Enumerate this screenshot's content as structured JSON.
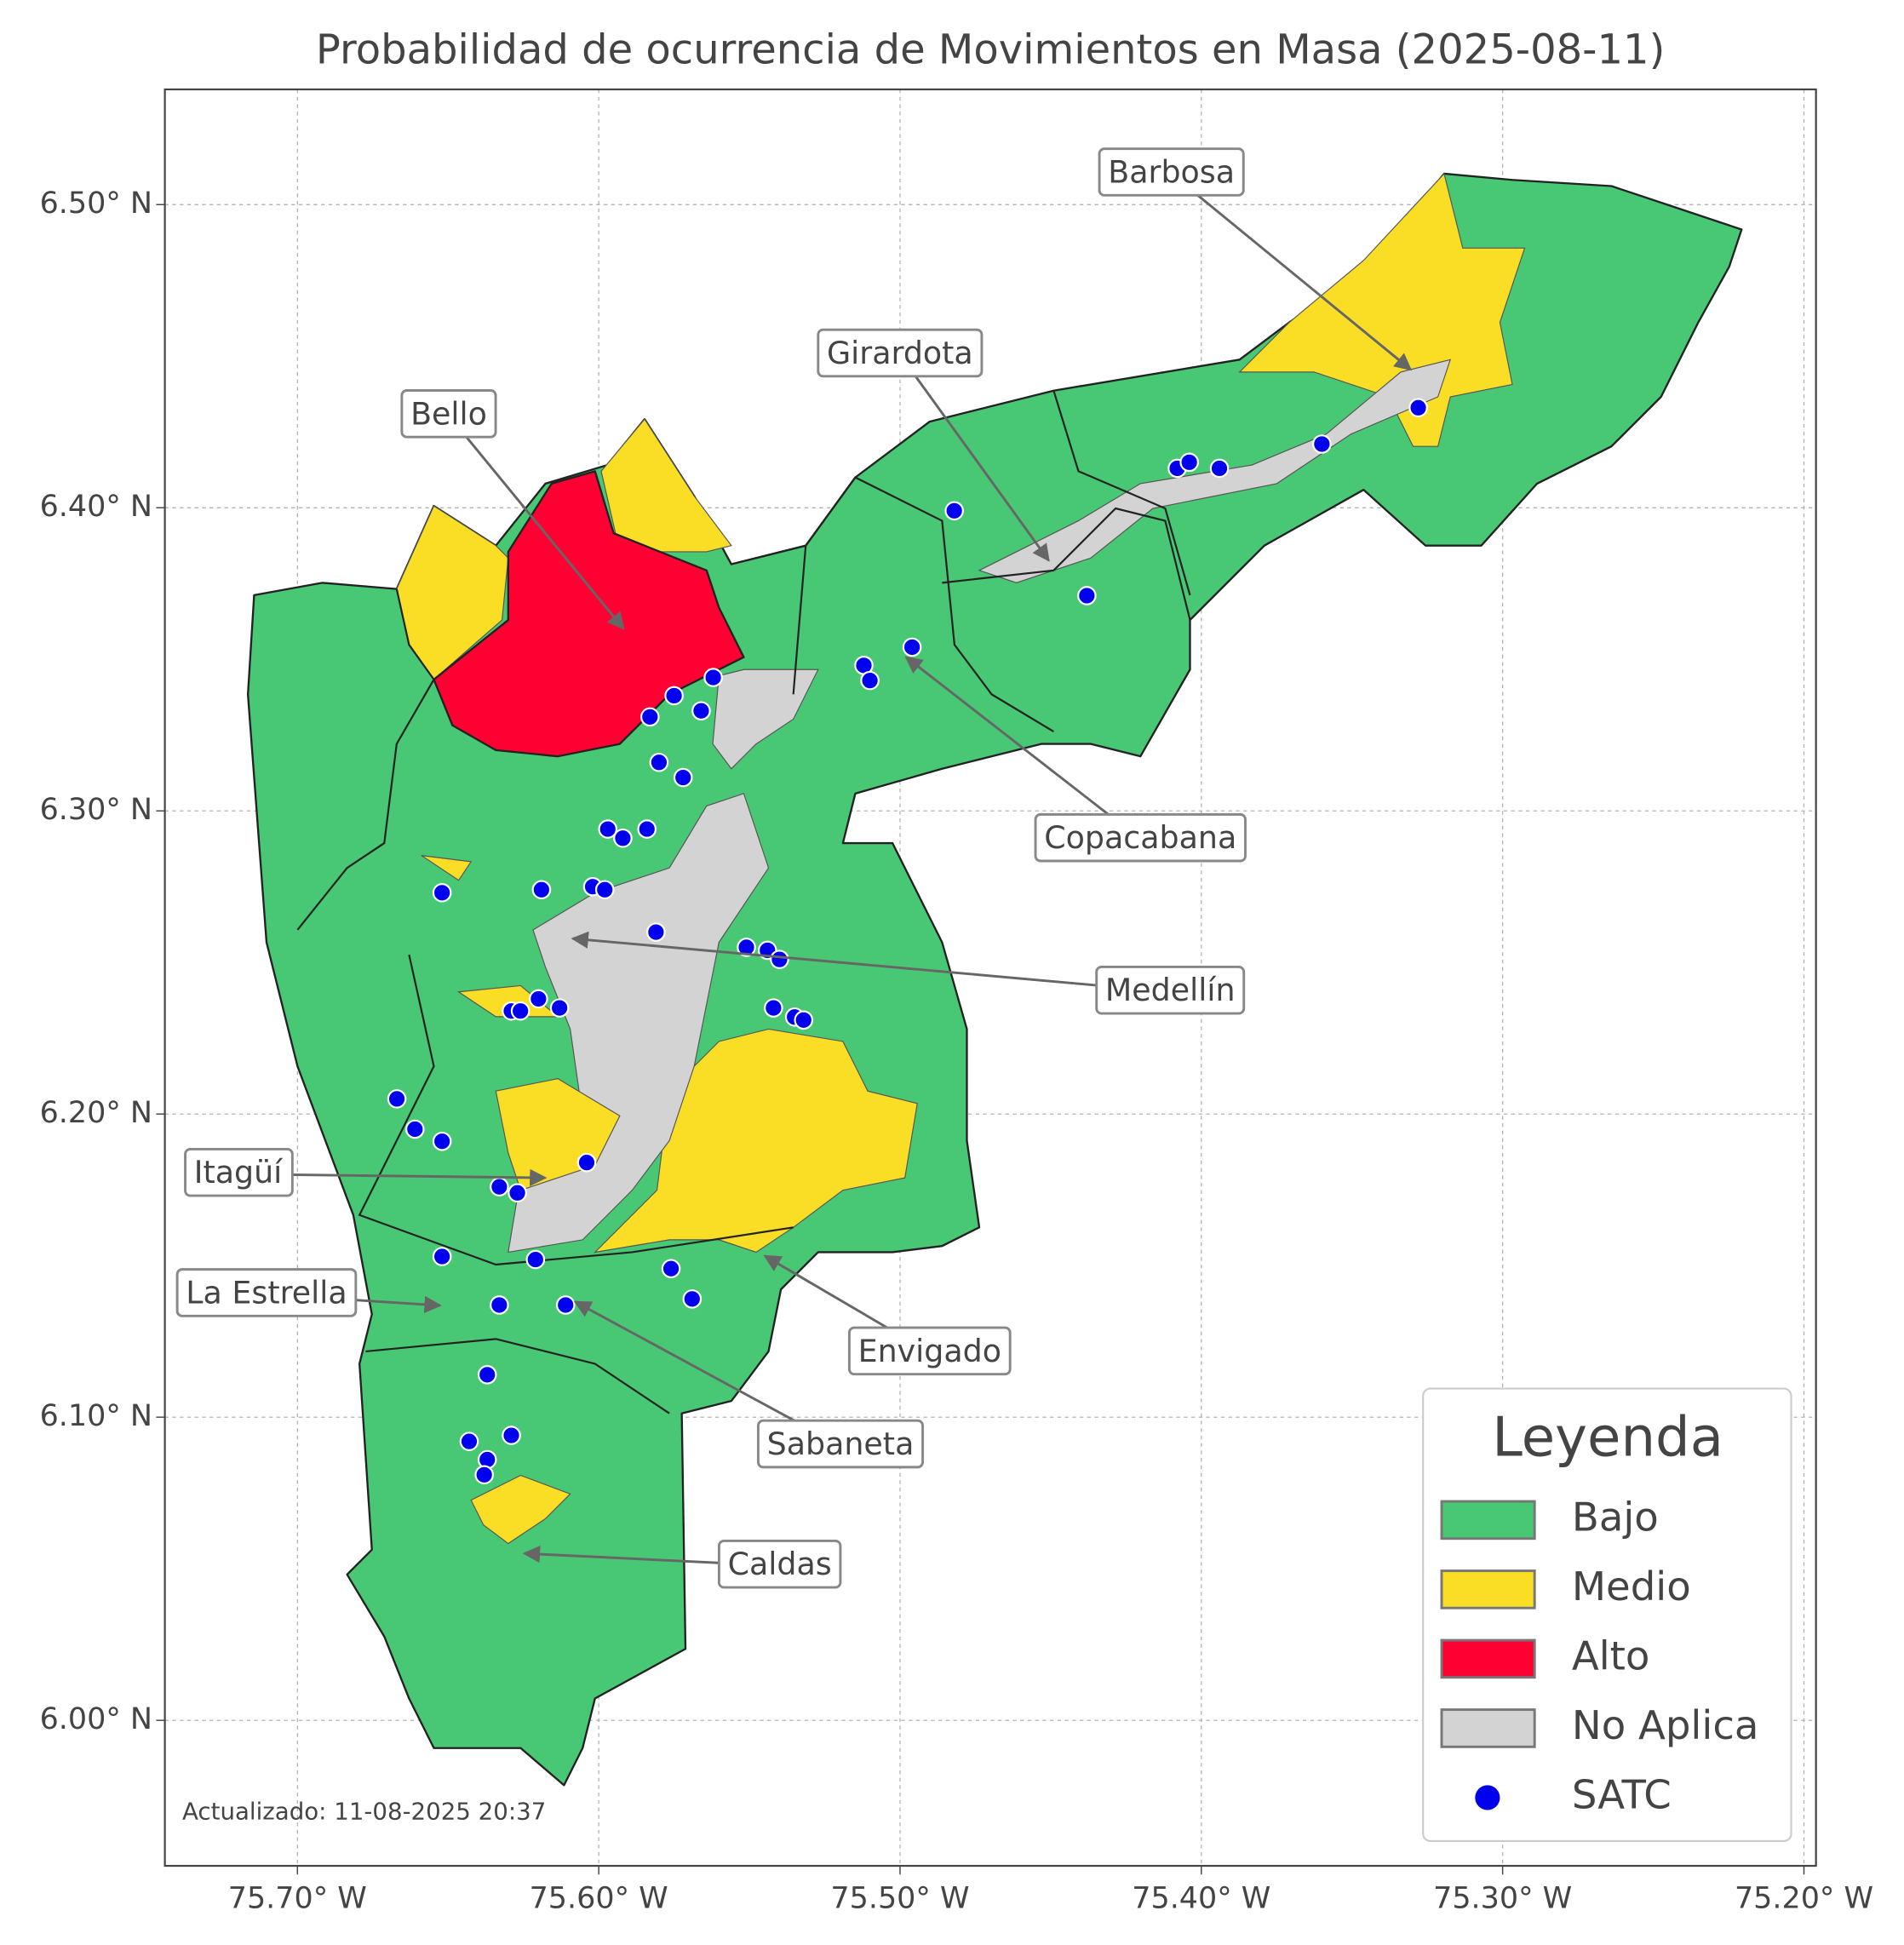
{
  "chart_data": {
    "type": "map",
    "title": "Probabilidad de ocurrencia de Movimientos en Masa (2025-08-11)",
    "xlim": [
      -75.744,
      -75.196
    ],
    "ylim": [
      5.952,
      6.538
    ],
    "xticks": [
      {
        "value": -75.7,
        "label": "75.70° W"
      },
      {
        "value": -75.6,
        "label": "75.60° W"
      },
      {
        "value": -75.5,
        "label": "75.50° W"
      },
      {
        "value": -75.4,
        "label": "75.40° W"
      },
      {
        "value": -75.3,
        "label": "75.30° W"
      },
      {
        "value": -75.2,
        "label": "75.20° W"
      }
    ],
    "yticks": [
      {
        "value": 6.0,
        "label": "6.00° N"
      },
      {
        "value": 6.1,
        "label": "6.10° N"
      },
      {
        "value": 6.2,
        "label": "6.20° N"
      },
      {
        "value": 6.3,
        "label": "6.30° N"
      },
      {
        "value": 6.4,
        "label": "6.40° N"
      },
      {
        "value": 6.5,
        "label": "6.50° N"
      }
    ],
    "grid": true,
    "legend": {
      "title": "Leyenda",
      "position": "lower right"
    },
    "regions": [
      {
        "name": "Bajo",
        "color": "#48c774"
      },
      {
        "name": "Medio",
        "color": "#fade26"
      },
      {
        "name": "Alto",
        "color": "#ff0033"
      },
      {
        "name": "No Aplica",
        "color": "#d3d3d3"
      }
    ],
    "series": [
      {
        "name": "SATC",
        "color": "#0000ee",
        "x": [
          -75.328,
          -75.36,
          -75.408,
          -75.404,
          -75.394,
          -75.482,
          -75.438,
          -75.496,
          -75.512,
          -75.51,
          -75.562,
          -75.575,
          -75.566,
          -75.583,
          -75.58,
          -75.572,
          -75.597,
          -75.592,
          -75.584,
          -75.652,
          -75.619,
          -75.602,
          -75.598,
          -75.581,
          -75.551,
          -75.544,
          -75.54,
          -75.542,
          -75.535,
          -75.532,
          -75.62,
          -75.629,
          -75.626,
          -75.613,
          -75.667,
          -75.661,
          -75.652,
          -75.604,
          -75.633,
          -75.627,
          -75.652,
          -75.621,
          -75.576,
          -75.569,
          -75.633,
          -75.611,
          -75.637,
          -75.643,
          -75.629,
          -75.637,
          -75.638
        ],
        "y": [
          6.433,
          6.421,
          6.413,
          6.415,
          6.413,
          6.399,
          6.371,
          6.354,
          6.348,
          6.343,
          6.344,
          6.338,
          6.333,
          6.331,
          6.316,
          6.311,
          6.294,
          6.291,
          6.294,
          6.273,
          6.274,
          6.275,
          6.274,
          6.26,
          6.255,
          6.254,
          6.251,
          6.235,
          6.232,
          6.231,
          6.238,
          6.234,
          6.234,
          6.235,
          6.205,
          6.195,
          6.191,
          6.184,
          6.176,
          6.174,
          6.153,
          6.152,
          6.149,
          6.139,
          6.137,
          6.137,
          6.114,
          6.092,
          6.094,
          6.086,
          6.081
        ]
      }
    ],
    "annotations": [
      "Barbosa",
      "Girardota",
      "Bello",
      "Copacabana",
      "Medellín",
      "Itagüí",
      "La Estrella",
      "Envigado",
      "Sabaneta",
      "Caldas"
    ],
    "footnote": "Actualizado: 11-08-2025 20:37"
  }
}
